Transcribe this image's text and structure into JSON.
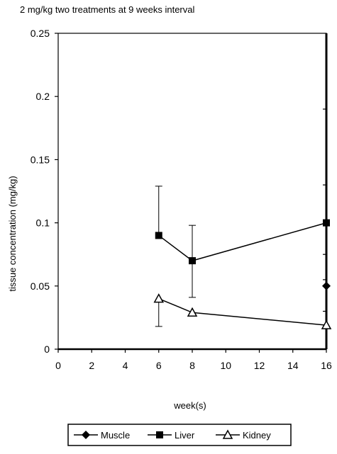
{
  "chart_data": {
    "type": "line",
    "title": "2 mg/kg two treatments at 9 weeks interval",
    "xlabel": "week(s)",
    "ylabel": "tissue concentration (mg/kg)",
    "xlim": [
      0,
      16
    ],
    "ylim": [
      0,
      0.25
    ],
    "x_ticks": [
      "0",
      "2",
      "4",
      "6",
      "8",
      "10",
      "12",
      "14",
      "16"
    ],
    "y_ticks": [
      "0",
      "0.05",
      "0.1",
      "0.15",
      "0.2",
      "0.25"
    ],
    "grid": false,
    "legend_position": "bottom",
    "series": [
      {
        "name": "Muscle",
        "marker": "diamond",
        "x": [
          16
        ],
        "y": [
          0.05
        ]
      },
      {
        "name": "Liver",
        "marker": "square",
        "x": [
          6,
          8,
          16
        ],
        "y": [
          0.09,
          0.07,
          0.1
        ],
        "error_low": [
          null,
          0.041,
          null
        ],
        "error_high": [
          0.129,
          0.098,
          null
        ]
      },
      {
        "name": "Kidney",
        "marker": "triangle",
        "x": [
          6,
          8,
          16
        ],
        "y": [
          0.04,
          0.029,
          0.019
        ],
        "error_low": [
          0.018,
          null,
          null
        ]
      }
    ]
  }
}
